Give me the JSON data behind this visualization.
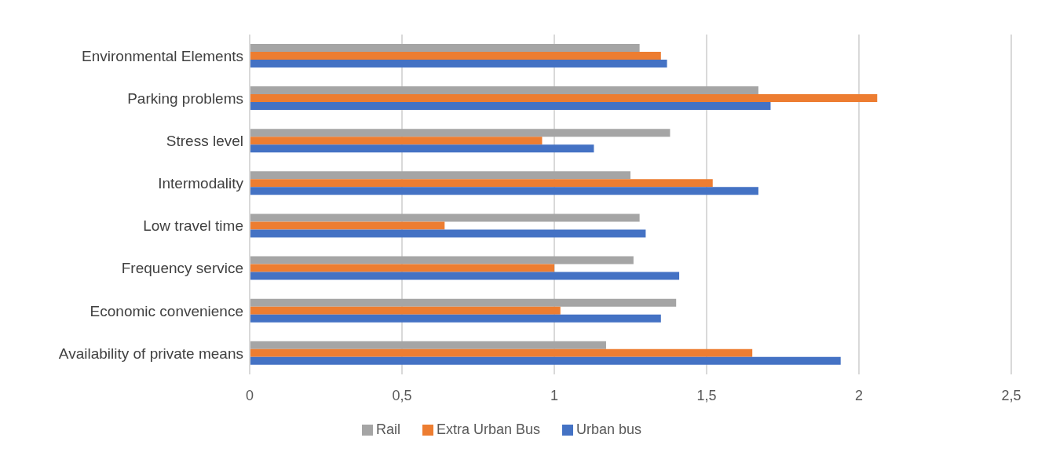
{
  "chart_data": {
    "type": "bar",
    "orientation": "horizontal",
    "categories": [
      "Environmental Elements",
      "Parking problems",
      "Stress level",
      "Intermodality",
      "Low travel time",
      "Frequency service",
      "Economic convenience",
      "Availability of private means"
    ],
    "series": [
      {
        "name": "Rail",
        "color": "#a5a5a5",
        "values": [
          1.28,
          1.67,
          1.38,
          1.25,
          1.28,
          1.26,
          1.4,
          1.17
        ]
      },
      {
        "name": "Extra Urban Bus",
        "color": "#ed7d31",
        "values": [
          1.35,
          2.06,
          0.96,
          1.52,
          0.64,
          1.0,
          1.02,
          1.65
        ]
      },
      {
        "name": "Urban bus",
        "color": "#4472c4",
        "values": [
          1.37,
          1.71,
          1.13,
          1.67,
          1.3,
          1.41,
          1.35,
          1.94
        ]
      }
    ],
    "xlim": [
      0,
      2.5
    ],
    "xticks": [
      0,
      {
        "value": 0.5,
        "label": "0,5"
      },
      1,
      {
        "value": 1.5,
        "label": "1,5"
      },
      2,
      {
        "value": 2.5,
        "label": "2,5"
      }
    ],
    "grid": "x",
    "legend": "bottom"
  }
}
